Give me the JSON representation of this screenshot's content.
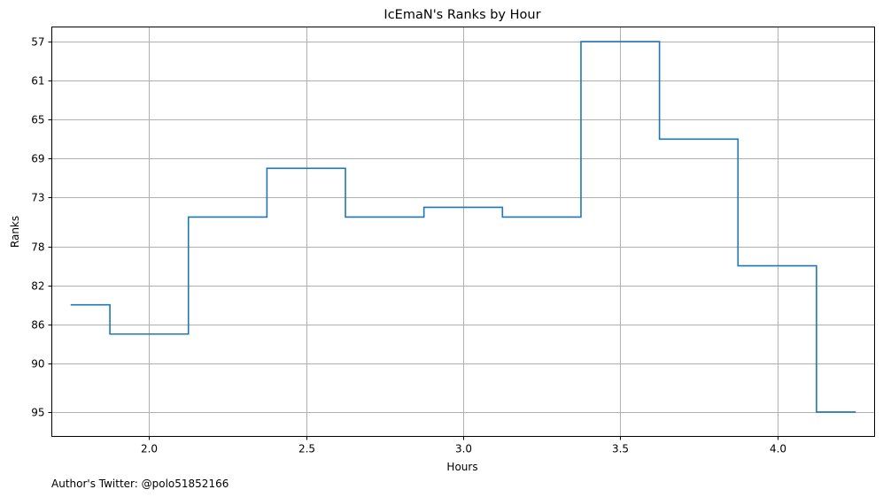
{
  "chart_data": {
    "type": "line",
    "step": "mid",
    "title": "IcEmaN's Ranks by Hour",
    "xlabel": "Hours",
    "ylabel": "Ranks",
    "footnote": "Author's Twitter: @polo51852166",
    "xlim": [
      1.69,
      4.31
    ],
    "ylim": [
      97.5,
      55.5
    ],
    "y_inverted": true,
    "grid": true,
    "xticks": [
      2.0,
      2.5,
      3.0,
      3.5,
      4.0
    ],
    "xtick_labels": [
      "2.0",
      "2.5",
      "3.0",
      "3.5",
      "4.0"
    ],
    "yticks": [
      57,
      61,
      65,
      69,
      73,
      78,
      82,
      86,
      90,
      95
    ],
    "ytick_labels": [
      "57",
      "61",
      "65",
      "69",
      "73",
      "78",
      "82",
      "86",
      "90",
      "95"
    ],
    "x": [
      1.75,
      2.0,
      2.25,
      2.5,
      2.75,
      3.0,
      3.25,
      3.5,
      3.75,
      4.0,
      4.25
    ],
    "series": [
      {
        "values": [
          84,
          87,
          75,
          70,
          75,
          74,
          75,
          57,
          67,
          80,
          95
        ],
        "color": "#1f77b4"
      }
    ]
  }
}
